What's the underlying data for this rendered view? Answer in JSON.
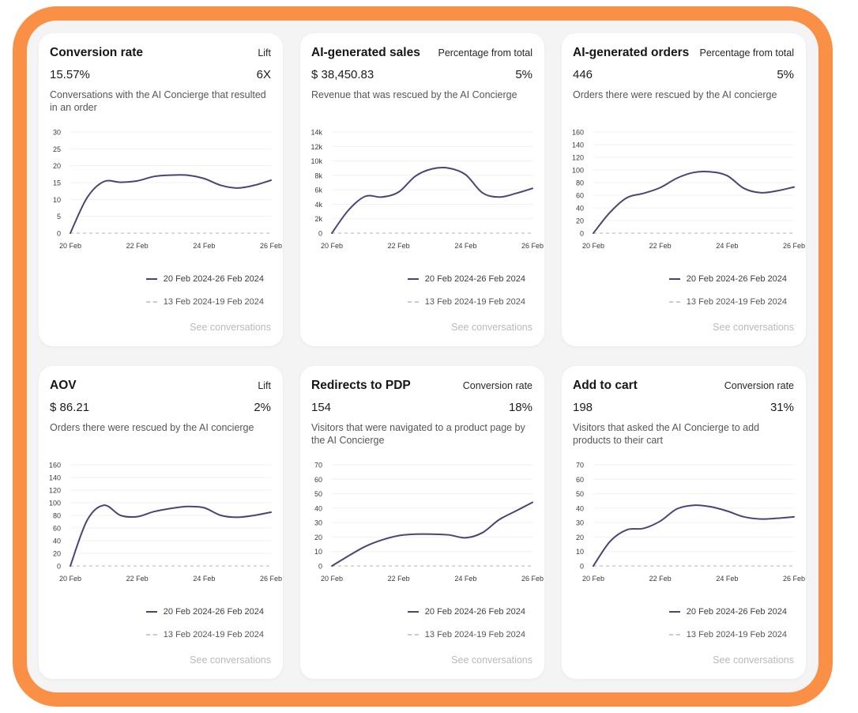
{
  "cards": [
    {
      "title": "Conversion rate",
      "side_label": "Lift",
      "value": "15.57%",
      "side_value": "6X",
      "description": "Conversations with the AI Concierge that resulted in an order",
      "legend_current": "20 Feb 2024-26 Feb 2024",
      "legend_previous": "13 Feb 2024-19 Feb 2024",
      "see_link": "See conversations"
    },
    {
      "title": "AI-generated sales",
      "side_label": "Percentage from total",
      "value": "$ 38,450.83",
      "side_value": "5%",
      "description": "Revenue that was rescued by the AI Concierge",
      "legend_current": "20 Feb 2024-26 Feb 2024",
      "legend_previous": "13 Feb 2024-19 Feb 2024",
      "see_link": "See conversations"
    },
    {
      "title": "AI-generated orders",
      "side_label": "Percentage from total",
      "value": "446",
      "side_value": "5%",
      "description": "Orders there were rescued by the AI concierge",
      "legend_current": "20 Feb 2024-26 Feb 2024",
      "legend_previous": "13 Feb 2024-19 Feb 2024",
      "see_link": "See conversations"
    },
    {
      "title": "AOV",
      "side_label": "Lift",
      "value": "$ 86.21",
      "side_value": "2%",
      "description": "Orders there were rescued by the AI concierge",
      "legend_current": "20 Feb 2024-26 Feb 2024",
      "legend_previous": "13 Feb 2024-19 Feb 2024",
      "see_link": "See conversations"
    },
    {
      "title": "Redirects to PDP",
      "side_label": "Conversion rate",
      "value": "154",
      "side_value": "18%",
      "description": "Visitors that were navigated to a product page by the AI Concierge",
      "legend_current": "20 Feb 2024-26 Feb 2024",
      "legend_previous": "13 Feb 2024-19 Feb 2024",
      "see_link": "See conversations"
    },
    {
      "title": "Add to cart",
      "side_label": "Conversion rate",
      "value": "198",
      "side_value": "31%",
      "description": "Visitors that asked the AI Concierge to add products to their cart",
      "legend_current": "20 Feb 2024-26 Feb 2024",
      "legend_previous": "13 Feb 2024-19 Feb 2024",
      "see_link": "See conversations"
    }
  ],
  "colors": {
    "accent": "#fa8f46",
    "series_current": "#4e4374",
    "series_previous": "#cccccc"
  },
  "chart_data": [
    {
      "type": "line",
      "title": "Conversion rate",
      "x": [
        0,
        0.5,
        1,
        1.5,
        2,
        2.5,
        3,
        3.5,
        4,
        4.5,
        5,
        5.5,
        6
      ],
      "x_tick_labels": [
        "20 Feb",
        "22 Feb",
        "24 Feb",
        "26 Feb"
      ],
      "x_tick_positions": [
        0,
        2,
        4,
        6
      ],
      "y_ticks": [
        "0",
        "5",
        "10",
        "15",
        "20",
        "25",
        "30"
      ],
      "ylim": [
        0,
        30
      ],
      "series": [
        {
          "name": "20 Feb 2024-26 Feb 2024",
          "values": [
            0,
            10.5,
            15.3,
            15.1,
            15.5,
            16.8,
            17.2,
            17.2,
            16.2,
            14.2,
            13.4,
            14.2,
            15.7
          ]
        },
        {
          "name": "13 Feb 2024-19 Feb 2024",
          "values": [
            0,
            0,
            0,
            0,
            0,
            0,
            0,
            0,
            0,
            0,
            0,
            0,
            0
          ]
        }
      ]
    },
    {
      "type": "line",
      "title": "AI-generated sales",
      "x": [
        0,
        0.5,
        1,
        1.5,
        2,
        2.5,
        3,
        3.5,
        4,
        4.5,
        5,
        5.5,
        6
      ],
      "x_tick_labels": [
        "20 Feb",
        "22 Feb",
        "24 Feb",
        "26 Feb"
      ],
      "x_tick_positions": [
        0,
        2,
        4,
        6
      ],
      "y_ticks": [
        "0",
        "2k",
        "4k",
        "6k",
        "8k",
        "10k",
        "12k",
        "14k"
      ],
      "ylim": [
        0,
        14000
      ],
      "series": [
        {
          "name": "20 Feb 2024-26 Feb 2024",
          "values": [
            0,
            3200,
            5100,
            5000,
            5700,
            7900,
            8900,
            9000,
            8100,
            5600,
            5000,
            5500,
            6200
          ]
        },
        {
          "name": "13 Feb 2024-19 Feb 2024",
          "values": [
            0,
            0,
            0,
            0,
            0,
            0,
            0,
            0,
            0,
            0,
            0,
            0,
            0
          ]
        }
      ]
    },
    {
      "type": "line",
      "title": "AI-generated orders",
      "x": [
        0,
        0.5,
        1,
        1.5,
        2,
        2.5,
        3,
        3.5,
        4,
        4.5,
        5,
        5.5,
        6
      ],
      "x_tick_labels": [
        "20 Feb",
        "22 Feb",
        "24 Feb",
        "26 Feb"
      ],
      "x_tick_positions": [
        0,
        2,
        4,
        6
      ],
      "y_ticks": [
        "0",
        "20",
        "40",
        "60",
        "80",
        "100",
        "120",
        "140",
        "160"
      ],
      "ylim": [
        0,
        160
      ],
      "series": [
        {
          "name": "20 Feb 2024-26 Feb 2024",
          "values": [
            0,
            33,
            56,
            63,
            72,
            87,
            96,
            97,
            91,
            71,
            64,
            67,
            73
          ]
        },
        {
          "name": "13 Feb 2024-19 Feb 2024",
          "values": [
            0,
            0,
            0,
            0,
            0,
            0,
            0,
            0,
            0,
            0,
            0,
            0,
            0
          ]
        }
      ]
    },
    {
      "type": "line",
      "title": "AOV",
      "x": [
        0,
        0.5,
        1,
        1.5,
        2,
        2.5,
        3,
        3.5,
        4,
        4.5,
        5,
        5.5,
        6
      ],
      "x_tick_labels": [
        "20 Feb",
        "22 Feb",
        "24 Feb",
        "26 Feb"
      ],
      "x_tick_positions": [
        0,
        2,
        4,
        6
      ],
      "y_ticks": [
        "0",
        "20",
        "40",
        "60",
        "80",
        "100",
        "120",
        "140",
        "160"
      ],
      "ylim": [
        0,
        160
      ],
      "series": [
        {
          "name": "20 Feb 2024-26 Feb 2024",
          "values": [
            0,
            72,
            96,
            80,
            78,
            86,
            91,
            94,
            92,
            80,
            77,
            80,
            85
          ]
        },
        {
          "name": "13 Feb 2024-19 Feb 2024",
          "values": [
            0,
            0,
            0,
            0,
            0,
            0,
            0,
            0,
            0,
            0,
            0,
            0,
            0
          ]
        }
      ]
    },
    {
      "type": "line",
      "title": "Redirects to PDP",
      "x": [
        0,
        0.5,
        1,
        1.5,
        2,
        2.5,
        3,
        3.5,
        4,
        4.5,
        5,
        5.5,
        6
      ],
      "x_tick_labels": [
        "20 Feb",
        "22 Feb",
        "24 Feb",
        "26 Feb"
      ],
      "x_tick_positions": [
        0,
        2,
        4,
        6
      ],
      "y_ticks": [
        "0",
        "10",
        "20",
        "30",
        "40",
        "50",
        "60",
        "70"
      ],
      "ylim": [
        0,
        70
      ],
      "series": [
        {
          "name": "20 Feb 2024-26 Feb 2024",
          "values": [
            0,
            7,
            13.5,
            18,
            21,
            22,
            22,
            21.5,
            19.5,
            23,
            32,
            38,
            44
          ]
        },
        {
          "name": "13 Feb 2024-19 Feb 2024",
          "values": [
            0,
            0,
            0,
            0,
            0,
            0,
            0,
            0,
            0,
            0,
            0,
            0,
            0
          ]
        }
      ]
    },
    {
      "type": "line",
      "title": "Add to cart",
      "x": [
        0,
        0.5,
        1,
        1.5,
        2,
        2.5,
        3,
        3.5,
        4,
        4.5,
        5,
        5.5,
        6
      ],
      "x_tick_labels": [
        "20 Feb",
        "22 Feb",
        "24 Feb",
        "26 Feb"
      ],
      "x_tick_positions": [
        0,
        2,
        4,
        6
      ],
      "y_ticks": [
        "0",
        "10",
        "20",
        "30",
        "40",
        "50",
        "60",
        "70"
      ],
      "ylim": [
        0,
        70
      ],
      "series": [
        {
          "name": "20 Feb 2024-26 Feb 2024",
          "values": [
            0,
            17,
            25,
            26,
            31,
            39.5,
            42,
            41,
            38,
            34,
            32.5,
            33,
            34
          ]
        },
        {
          "name": "13 Feb 2024-19 Feb 2024",
          "values": [
            0,
            0,
            0,
            0,
            0,
            0,
            0,
            0,
            0,
            0,
            0,
            0,
            0
          ]
        }
      ]
    }
  ]
}
